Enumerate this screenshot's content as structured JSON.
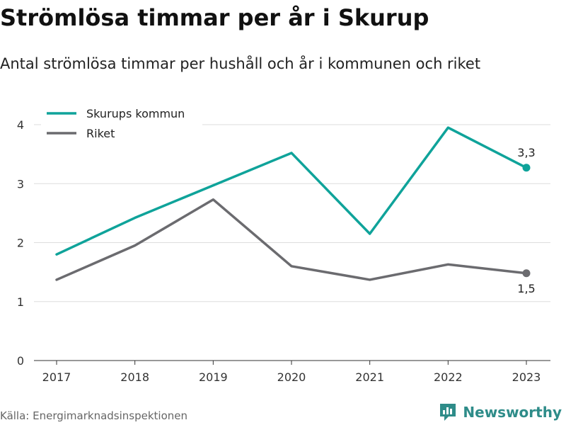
{
  "header": {
    "title": "Strömlösa timmar per år i Skurup",
    "subtitle": "Antal strömlösa timmar per hushåll och år i kommunen och riket"
  },
  "footer": {
    "source": "Källa: Energimarknadsinspektionen",
    "brand": "Newsworthy"
  },
  "colors": {
    "skurup": "#0fa39a",
    "riket": "#6b6b6f",
    "grid": "#dddddd",
    "brand": "#2e8c89"
  },
  "chart_data": {
    "type": "line",
    "x": [
      "2017",
      "2018",
      "2019",
      "2020",
      "2021",
      "2022",
      "2023"
    ],
    "series": [
      {
        "name": "Skurups kommun",
        "values": [
          1.8,
          2.42,
          2.97,
          3.52,
          2.15,
          3.95,
          3.27
        ],
        "end_label": "3,3"
      },
      {
        "name": "Riket",
        "values": [
          1.37,
          1.95,
          2.73,
          1.6,
          1.37,
          1.63,
          1.48
        ],
        "end_label": "1,5"
      }
    ],
    "ylim": [
      0,
      4
    ],
    "yticks": [
      0,
      1,
      2,
      3,
      4
    ],
    "ytick_labels": [
      "0",
      "1",
      "2",
      "3",
      "4"
    ],
    "grid": true,
    "legend": "top-left"
  }
}
